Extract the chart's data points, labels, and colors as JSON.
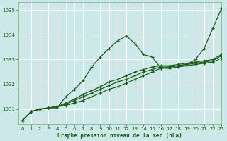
{
  "title": "Graphe pression niveau de la mer (hPa)",
  "background_color": "#cce8e8",
  "grid_color": "#b0d8d8",
  "line_color": "#1a5c1a",
  "xlim": [
    -0.5,
    23
  ],
  "ylim": [
    1030.4,
    1035.3
  ],
  "yticks": [
    1031,
    1032,
    1033,
    1034,
    1035
  ],
  "xticks": [
    0,
    1,
    2,
    3,
    4,
    5,
    6,
    7,
    8,
    9,
    10,
    11,
    12,
    13,
    14,
    15,
    16,
    17,
    18,
    19,
    20,
    21,
    22,
    23
  ],
  "series": [
    [
      1030.55,
      1030.9,
      1031.0,
      1031.05,
      1031.05,
      1031.5,
      1031.8,
      1032.15,
      1032.7,
      1033.1,
      1033.45,
      1033.75,
      1033.95,
      1033.65,
      1033.2,
      1033.1,
      1032.65,
      1032.7,
      1032.75,
      1032.8,
      1033.0,
      1033.45,
      1034.25,
      1035.05
    ],
    [
      1030.55,
      1030.9,
      1031.0,
      1031.05,
      1031.1,
      1031.15,
      1031.25,
      1031.35,
      1031.5,
      1031.65,
      1031.8,
      1031.9,
      1032.05,
      1032.2,
      1032.35,
      1032.5,
      1032.65,
      1032.65,
      1032.7,
      1032.75,
      1032.8,
      1032.85,
      1032.9,
      1033.05
    ],
    [
      1030.55,
      1030.9,
      1031.0,
      1031.05,
      1031.1,
      1031.2,
      1031.35,
      1031.5,
      1031.65,
      1031.8,
      1031.95,
      1032.1,
      1032.2,
      1032.35,
      1032.5,
      1032.6,
      1032.7,
      1032.7,
      1032.75,
      1032.8,
      1032.85,
      1032.9,
      1032.95,
      1033.15
    ],
    [
      1030.55,
      1030.9,
      1031.0,
      1031.05,
      1031.1,
      1031.25,
      1031.4,
      1031.6,
      1031.75,
      1031.9,
      1032.1,
      1032.2,
      1032.35,
      1032.5,
      1032.6,
      1032.7,
      1032.75,
      1032.75,
      1032.8,
      1032.85,
      1032.9,
      1032.95,
      1033.0,
      1033.2
    ]
  ]
}
